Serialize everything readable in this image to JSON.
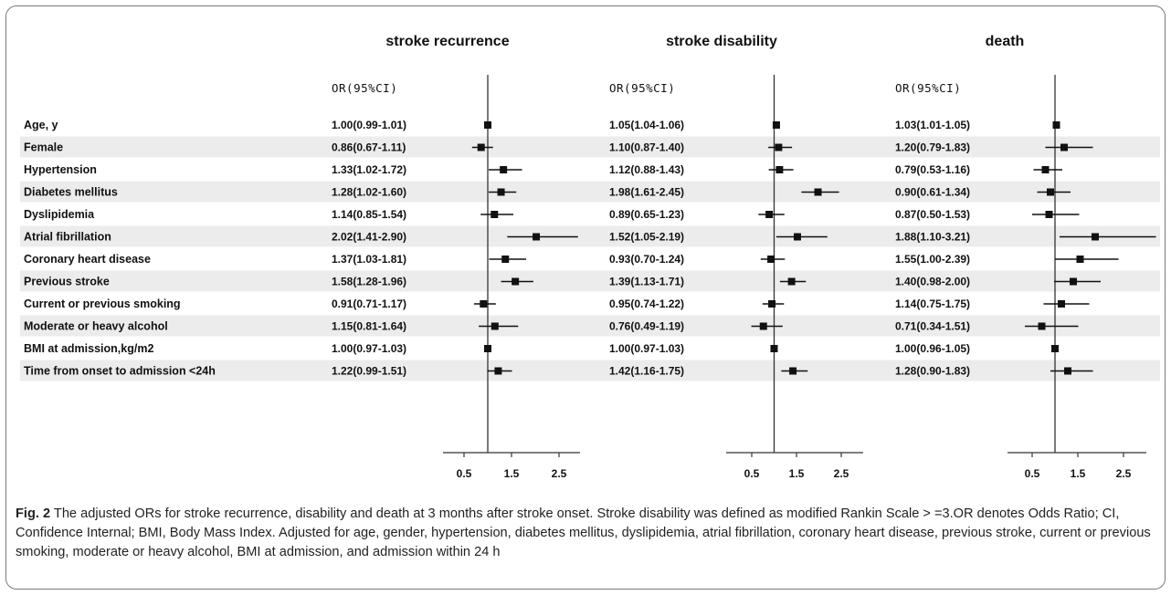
{
  "chart_data": {
    "type": "forest",
    "panels": [
      {
        "title": "stroke recurrence",
        "or_header": "OR(95%CI)",
        "or_text": [
          "1.00(0.99-1.01)",
          "0.86(0.67-1.11)",
          "1.33(1.02-1.72)",
          "1.28(1.02-1.60)",
          "1.14(0.85-1.54)",
          "2.02(1.41-2.90)",
          "1.37(1.03-1.81)",
          "1.58(1.28-1.96)",
          "0.91(0.71-1.17)",
          "1.15(0.81-1.64)",
          "1.00(0.97-1.03)",
          "1.22(0.99-1.51)"
        ],
        "or": [
          1.0,
          0.86,
          1.33,
          1.28,
          1.14,
          2.02,
          1.37,
          1.58,
          0.91,
          1.15,
          1.0,
          1.22
        ],
        "lower": [
          0.99,
          0.67,
          1.02,
          1.02,
          0.85,
          1.41,
          1.03,
          1.28,
          0.71,
          0.81,
          0.97,
          0.99
        ],
        "upper": [
          1.01,
          1.11,
          1.72,
          1.6,
          1.54,
          2.9,
          1.81,
          1.96,
          1.17,
          1.64,
          1.03,
          1.51
        ],
        "xticks": [
          "0.5",
          "1.5",
          "2.5"
        ]
      },
      {
        "title": "stroke disability",
        "or_header": "OR(95%CI)",
        "or_text": [
          "1.05(1.04-1.06)",
          "1.10(0.87-1.40)",
          "1.12(0.88-1.43)",
          "1.98(1.61-2.45)",
          "0.89(0.65-1.23)",
          "1.52(1.05-2.19)",
          "0.93(0.70-1.24)",
          "1.39(1.13-1.71)",
          "0.95(0.74-1.22)",
          "0.76(0.49-1.19)",
          "1.00(0.97-1.03)",
          "1.42(1.16-1.75)"
        ],
        "or": [
          1.05,
          1.1,
          1.12,
          1.98,
          0.89,
          1.52,
          0.93,
          1.39,
          0.95,
          0.76,
          1.0,
          1.42
        ],
        "lower": [
          1.04,
          0.87,
          0.88,
          1.61,
          0.65,
          1.05,
          0.7,
          1.13,
          0.74,
          0.49,
          0.97,
          1.16
        ],
        "upper": [
          1.06,
          1.4,
          1.43,
          2.45,
          1.23,
          2.19,
          1.24,
          1.71,
          1.22,
          1.19,
          1.03,
          1.75
        ],
        "xticks": [
          "0.5",
          "1.5",
          "2.5"
        ]
      },
      {
        "title": "death",
        "or_header": "OR(95%CI)",
        "or_text": [
          "1.03(1.01-1.05)",
          "1.20(0.79-1.83)",
          "0.79(0.53-1.16)",
          "0.90(0.61-1.34)",
          "0.87(0.50-1.53)",
          "1.88(1.10-3.21)",
          "1.55(1.00-2.39)",
          "1.40(0.98-2.00)",
          "1.14(0.75-1.75)",
          "0.71(0.34-1.51)",
          "1.00(0.96-1.05)",
          "1.28(0.90-1.83)"
        ],
        "or": [
          1.03,
          1.2,
          0.79,
          0.9,
          0.87,
          1.88,
          1.55,
          1.4,
          1.14,
          0.71,
          1.0,
          1.28
        ],
        "lower": [
          1.01,
          0.79,
          0.53,
          0.61,
          0.5,
          1.1,
          1.0,
          0.98,
          0.75,
          0.34,
          0.96,
          0.9
        ],
        "upper": [
          1.05,
          1.83,
          1.16,
          1.34,
          1.53,
          3.21,
          2.39,
          2.0,
          1.75,
          1.51,
          1.05,
          1.83
        ],
        "xticks": [
          "0.5",
          "1.5",
          "2.5"
        ]
      }
    ],
    "variables": [
      "Age,  y",
      "Female",
      "Hypertension",
      "Diabetes  mellitus",
      "Dyslipidemia",
      "Atrial  fibrillation",
      "Coronary heart disease",
      "Previous stroke",
      "Current or previous smoking",
      "Moderate or heavy alcohol",
      "BMI at admission,kg/m2",
      "Time from onset to admission <24h"
    ],
    "xlim": [
      0.5,
      2.5
    ],
    "reference_line": 1
  },
  "caption": {
    "label": "Fig. 2",
    "text": "The adjusted ORs for stroke recurrence, disability and death at 3 months after stroke onset. Stroke disability was defined as modified Rankin Scale > =3.OR denotes Odds Ratio; CI, Confidence Internal; BMI, Body Mass Index. Adjusted for age, gender, hypertension, diabetes mellitus, dyslipidemia, atrial fibrillation, coronary heart disease, previous stroke, current or previous smoking, moderate or heavy alcohol, BMI at admission, and admission within 24 h"
  },
  "colors": {
    "stripe": "#ececec",
    "mark": "#111111",
    "axis": "#333333"
  }
}
